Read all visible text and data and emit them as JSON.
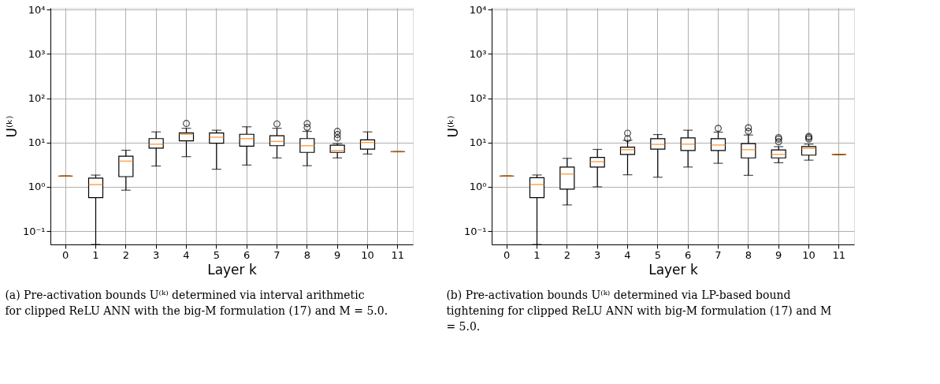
{
  "chart_data": [
    {
      "type": "box",
      "xlabel": "Layer k",
      "ylabel": "U⁽ᵏ⁾",
      "log": "y",
      "grid": true,
      "categories": [
        "0",
        "1",
        "2",
        "3",
        "4",
        "5",
        "6",
        "7",
        "8",
        "9",
        "10",
        "11"
      ],
      "ylim": [
        0.05,
        11000
      ],
      "yticks": [
        {
          "value": 0.1,
          "label": "10⁻¹"
        },
        {
          "value": 1,
          "label": "10⁰"
        },
        {
          "value": 10,
          "label": "10¹"
        },
        {
          "value": 100,
          "label": "10²"
        },
        {
          "value": 1000,
          "label": "10³"
        },
        {
          "value": 10000,
          "label": "10⁴"
        }
      ],
      "boxes": [
        {
          "low": 1.74,
          "q1": 1.74,
          "median": 1.74,
          "q3": 1.74,
          "high": 1.74
        },
        {
          "low": 0.05,
          "q1": 0.57,
          "median": 1.12,
          "q3": 1.58,
          "high": 1.84
        },
        {
          "low": 0.84,
          "q1": 1.7,
          "median": 3.8,
          "q3": 4.9,
          "high": 6.7
        },
        {
          "low": 2.95,
          "q1": 7.5,
          "median": 9.2,
          "q3": 12.3,
          "high": 17.4
        },
        {
          "low": 4.8,
          "q1": 10.9,
          "median": 15.4,
          "q3": 16.5,
          "high": 21,
          "outliers": [
            27
          ]
        },
        {
          "low": 2.5,
          "q1": 9.7,
          "median": 13.2,
          "q3": 16.5,
          "high": 19
        },
        {
          "low": 3.1,
          "q1": 8.3,
          "median": 12.3,
          "q3": 15.4,
          "high": 22.7
        },
        {
          "low": 4.5,
          "q1": 8.5,
          "median": 10.6,
          "q3": 14.3,
          "high": 21,
          "outliers": [
            26.4
          ]
        },
        {
          "low": 3.0,
          "q1": 6.0,
          "median": 8.5,
          "q3": 12.3,
          "high": 17.9,
          "outliers": [
            22,
            26.7
          ]
        },
        {
          "low": 4.5,
          "q1": 6.0,
          "median": 6.6,
          "q3": 8.7,
          "high": 9.5,
          "outliers": [
            12.6,
            15.2,
            17.9
          ]
        },
        {
          "low": 5.5,
          "q1": 7.1,
          "median": 10,
          "q3": 11.5,
          "high": 17.4
        },
        {
          "low": 6.2,
          "q1": 6.2,
          "median": 6.2,
          "q3": 6.2,
          "high": 6.2
        }
      ],
      "annotations": [
        "(a) Pre-activation bounds U⁽ᵏ⁾ determined via interval arithmetic for clipped ReLU ANN with the big-M formulation (17) and M = 5.0."
      ]
    },
    {
      "type": "box",
      "xlabel": "Layer k",
      "ylabel": "U⁽ᵏ⁾",
      "log": "y",
      "grid": true,
      "categories": [
        "0",
        "1",
        "2",
        "3",
        "4",
        "5",
        "6",
        "7",
        "8",
        "9",
        "10",
        "11"
      ],
      "ylim": [
        0.05,
        11000
      ],
      "yticks": [
        {
          "value": 0.1,
          "label": "10⁻¹"
        },
        {
          "value": 1,
          "label": "10⁰"
        },
        {
          "value": 10,
          "label": "10¹"
        },
        {
          "value": 100,
          "label": "10²"
        },
        {
          "value": 1000,
          "label": "10³"
        },
        {
          "value": 10000,
          "label": "10⁴"
        }
      ],
      "boxes": [
        {
          "low": 1.75,
          "q1": 1.75,
          "median": 1.75,
          "q3": 1.75,
          "high": 1.75
        },
        {
          "low": 0.05,
          "q1": 0.57,
          "median": 1.13,
          "q3": 1.61,
          "high": 1.85
        },
        {
          "low": 0.39,
          "q1": 0.89,
          "median": 1.95,
          "q3": 2.8,
          "high": 4.4
        },
        {
          "low": 1.0,
          "q1": 2.8,
          "median": 3.7,
          "q3": 4.6,
          "high": 7.0
        },
        {
          "low": 1.87,
          "q1": 5.4,
          "median": 6.9,
          "q3": 7.9,
          "high": 11.2,
          "outliers": [
            12.2,
            16.3
          ]
        },
        {
          "low": 1.65,
          "q1": 7.1,
          "median": 9.1,
          "q3": 12.2,
          "high": 15.2
        },
        {
          "low": 2.8,
          "q1": 6.6,
          "median": 9.2,
          "q3": 12.7,
          "high": 19
        },
        {
          "low": 3.4,
          "q1": 6.6,
          "median": 8.8,
          "q3": 12.2,
          "high": 17.2,
          "outliers": [
            21
          ]
        },
        {
          "low": 1.82,
          "q1": 4.5,
          "median": 6.9,
          "q3": 9.5,
          "high": 14.8,
          "outliers": [
            18,
            21.6
          ]
        },
        {
          "low": 3.5,
          "q1": 4.5,
          "median": 5.4,
          "q3": 6.8,
          "high": 8.1,
          "outliers": [
            10.4,
            12,
            13
          ]
        },
        {
          "low": 4.0,
          "q1": 5.2,
          "median": 7.4,
          "q3": 8.1,
          "high": 9.2,
          "outliers": [
            12,
            13,
            13.8
          ]
        },
        {
          "low": 5.4,
          "q1": 5.4,
          "median": 5.4,
          "q3": 5.4,
          "high": 5.4
        }
      ],
      "annotations": [
        "(b) Pre-activation bounds U⁽ᵏ⁾ determined via LP-based bound tightening for clipped ReLU ANN with big-M formulation (17) and M = 5.0."
      ]
    }
  ]
}
